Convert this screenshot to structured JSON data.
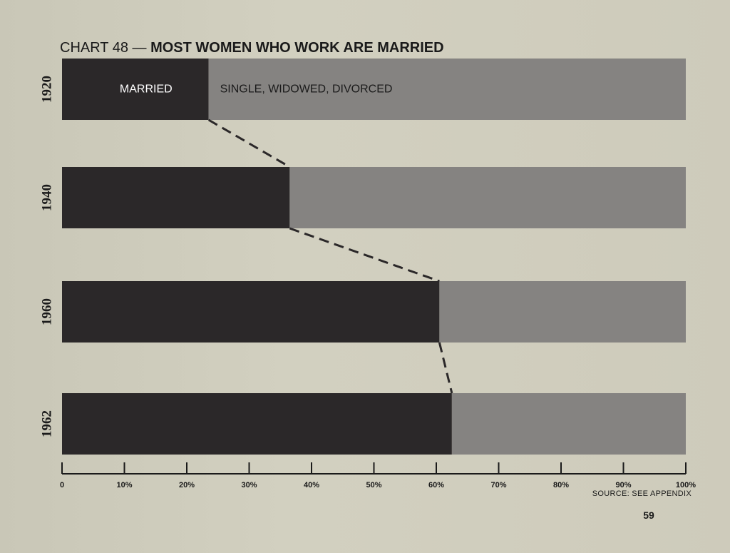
{
  "chart_title": {
    "prefix": "CHART 48 —",
    "main": "MOST WOMEN WHO WORK ARE MARRIED"
  },
  "source_note": "SOURCE: SEE APPENDIX",
  "page_number": "59",
  "colors": {
    "married": "#2b2829",
    "other": "#858381",
    "axis": "#1a1a1a",
    "dash": "#2b2829"
  },
  "chart_data": {
    "type": "bar",
    "orientation": "horizontal",
    "stacked": true,
    "categories": [
      "1920",
      "1940",
      "1960",
      "1962"
    ],
    "series": [
      {
        "name": "MARRIED",
        "values": [
          23.5,
          36.5,
          60.5,
          62.5
        ]
      },
      {
        "name": "SINGLE, WIDOWED, DIVORCED",
        "values": [
          76.5,
          63.5,
          39.5,
          37.5
        ]
      }
    ],
    "xlim": [
      0,
      100
    ],
    "x_ticks": [
      0,
      10,
      20,
      30,
      40,
      50,
      60,
      70,
      80,
      90,
      100
    ],
    "x_tick_labels": [
      "0",
      "10%",
      "20%",
      "30%",
      "40%",
      "50%",
      "60%",
      "70%",
      "80%",
      "90%",
      "100%"
    ],
    "connector_lines": "dashed",
    "legend_placement": "inside top bar"
  }
}
